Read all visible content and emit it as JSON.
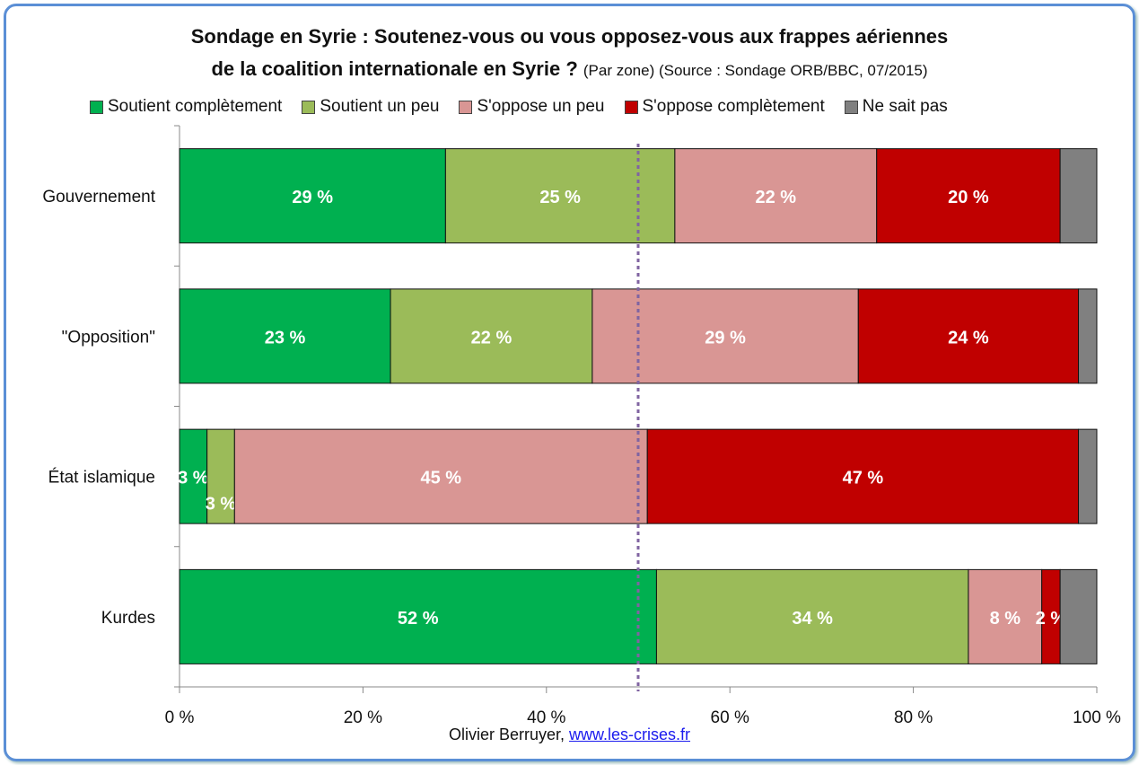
{
  "chart_data": {
    "type": "bar",
    "orientation": "horizontal",
    "stacked": true,
    "title": "Sondage en Syrie : Soutenez-vous ou  vous opposez-vous aux frappes aériennes",
    "title_line2": "de la coalition internationale en Syrie ?",
    "subtitle": "(Par zone) (Source : Sondage ORB/BBC, 07/2015)",
    "categories": [
      "Gouvernement",
      "\"Opposition\"",
      "État islamique",
      "Kurdes"
    ],
    "series": [
      {
        "name": "Soutient complètement",
        "color": "#00B050",
        "values": [
          29,
          23,
          3,
          52
        ]
      },
      {
        "name": "Soutient un peu",
        "color": "#9BBB59",
        "values": [
          25,
          22,
          3,
          34
        ]
      },
      {
        "name": "S'oppose un peu",
        "color": "#D99694",
        "values": [
          22,
          29,
          45,
          8
        ]
      },
      {
        "name": "S'oppose complètement",
        "color": "#C00000",
        "values": [
          20,
          24,
          47,
          2
        ]
      },
      {
        "name": "Ne sait pas",
        "color": "#808080",
        "values": [
          4,
          2,
          2,
          4
        ]
      }
    ],
    "xlim": [
      0,
      100
    ],
    "xticks": [
      "0 %",
      "20 %",
      "40 %",
      "60 %",
      "80 %",
      "100 %"
    ],
    "reference_line": 50,
    "legend": "top"
  },
  "footer": {
    "author": "Olivier Berruyer,",
    "link": "www.les-crises.fr"
  }
}
